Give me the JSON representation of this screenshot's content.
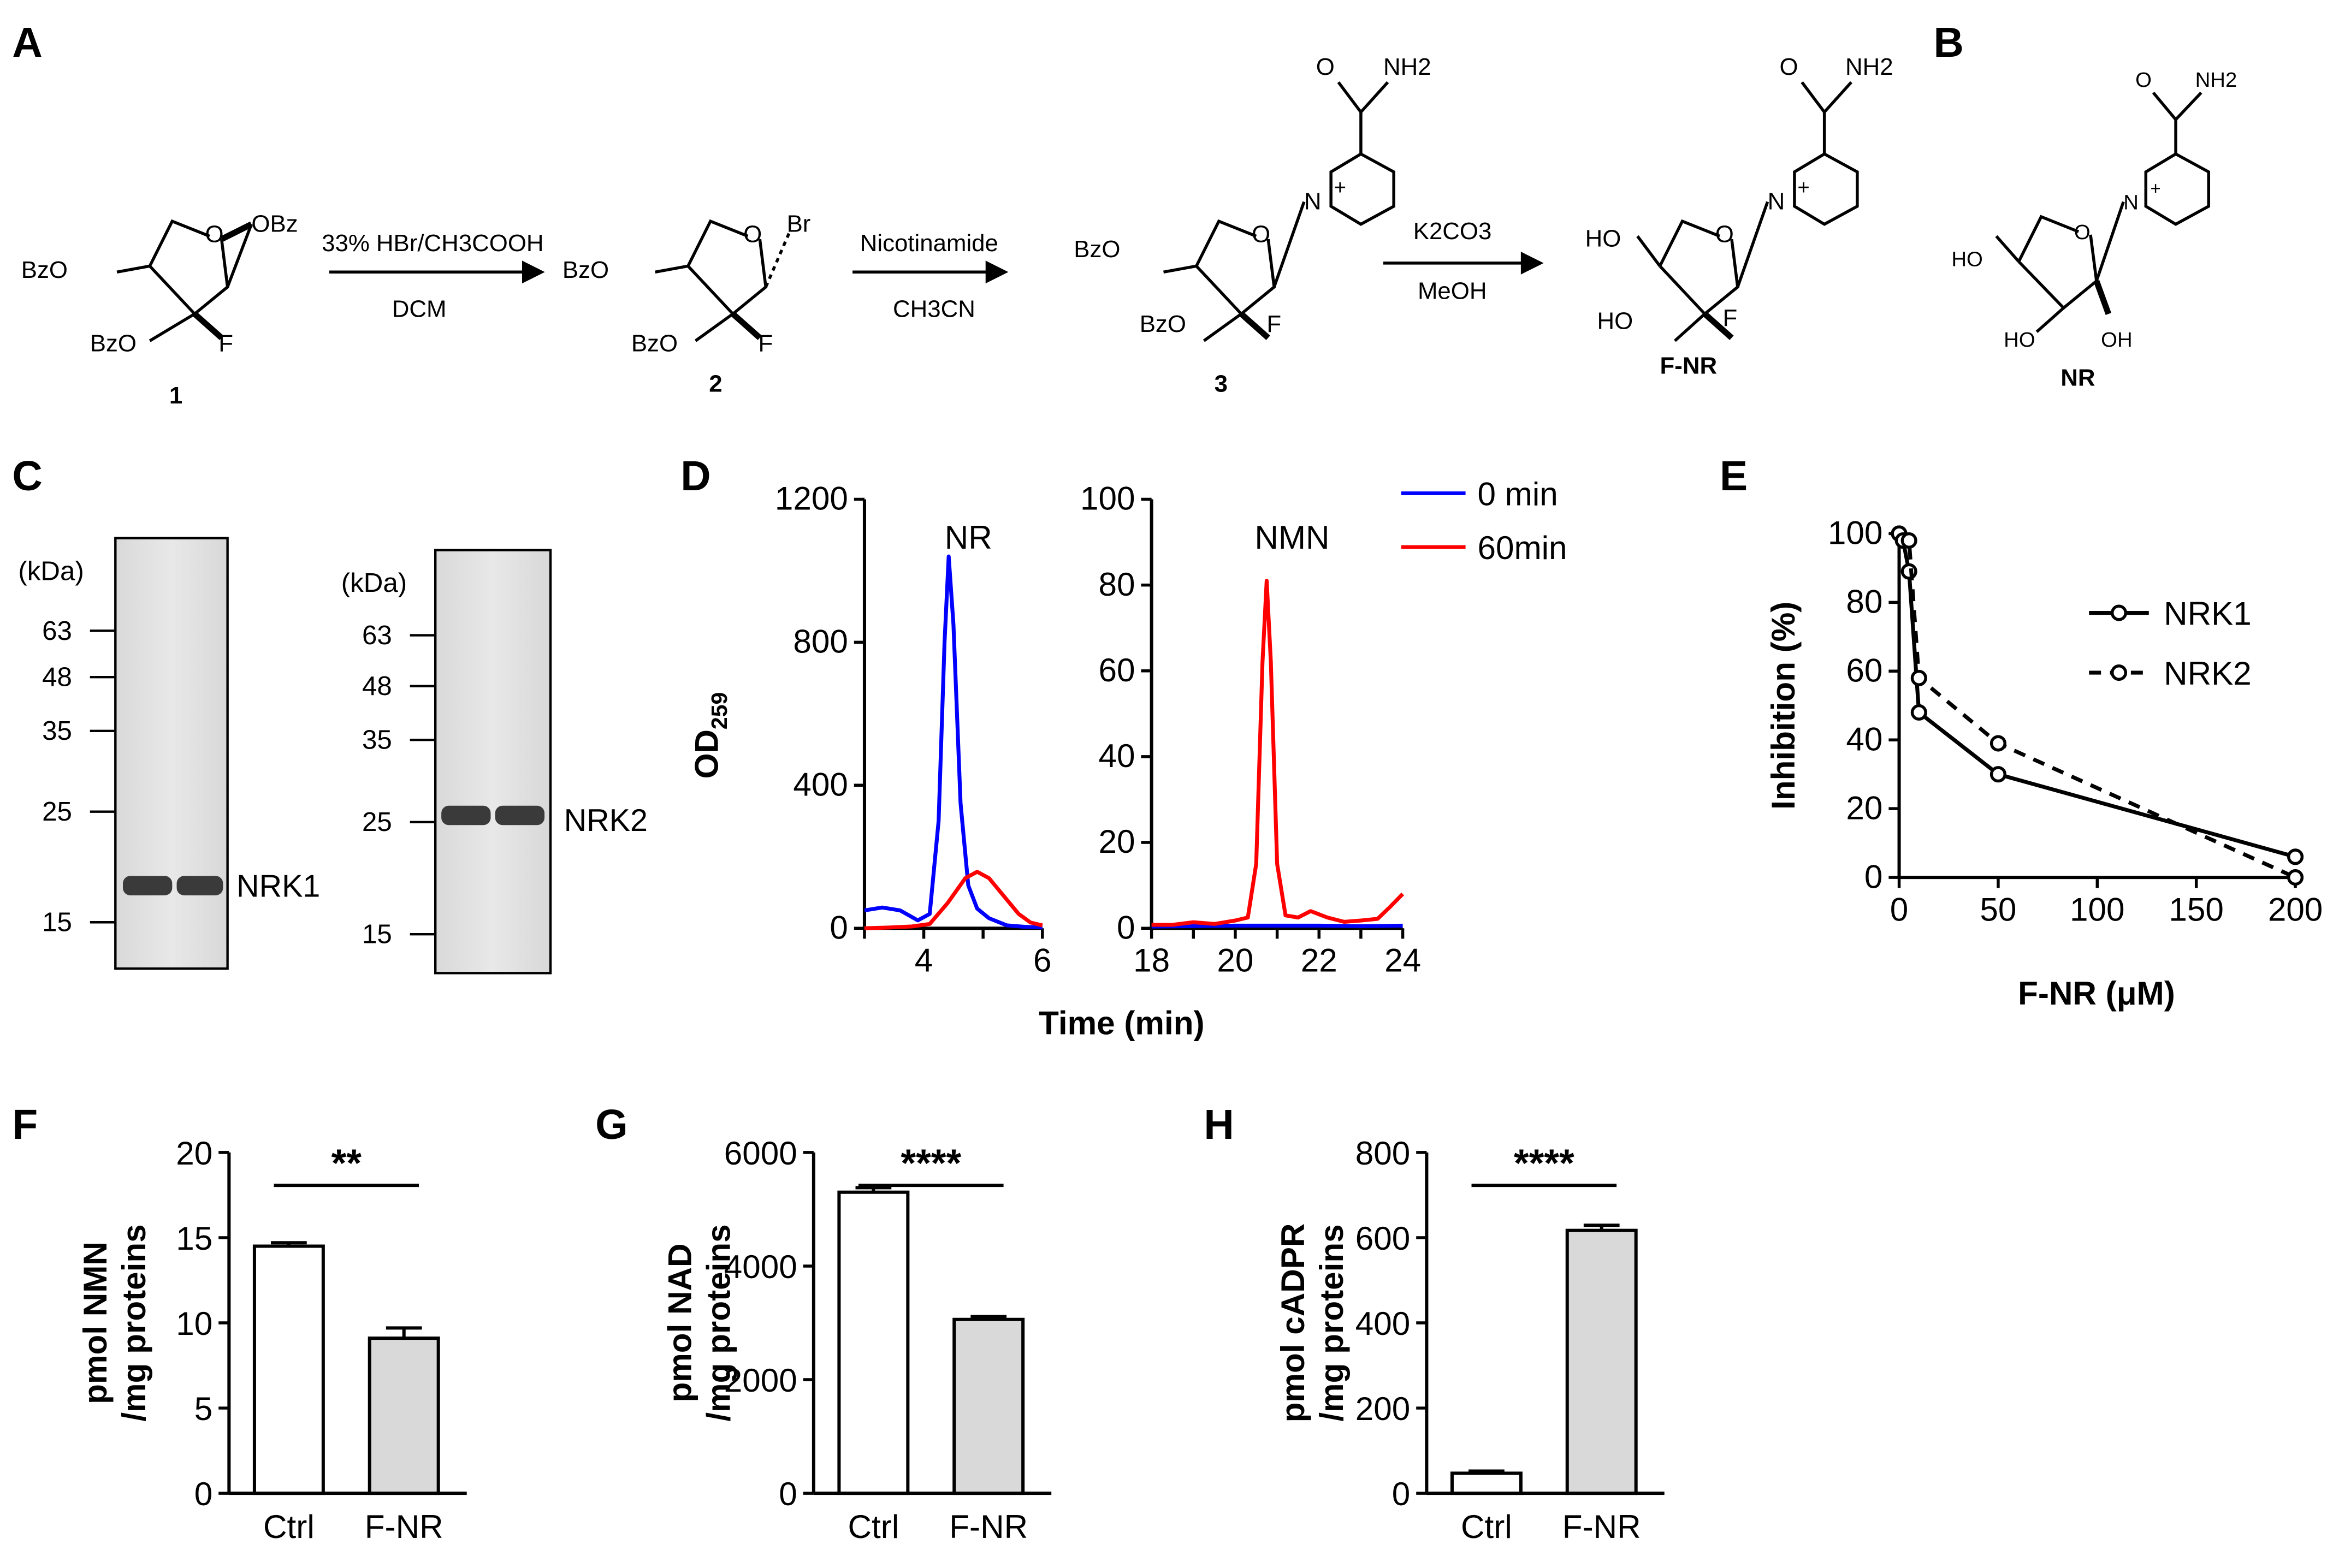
{
  "panels": {
    "a": "A",
    "b": "B",
    "c": "C",
    "d": "D",
    "e": "E",
    "f": "F",
    "g": "G",
    "h": "H"
  },
  "scheme": {
    "step1_reagent": "33% HBr/CH3COOH",
    "step1_solvent": "DCM",
    "step2_reagent": "Nicotinamide",
    "step2_solvent": "CH3CN",
    "step3_reagent": "K2CO3",
    "step3_solvent": "MeOH",
    "compounds": [
      "1",
      "2",
      "3",
      "F-NR"
    ],
    "product_b": "NR",
    "groups": {
      "obz": "OBz",
      "bzo": "BzO",
      "br": "Br",
      "f": "F",
      "ho": "HO",
      "oh": "OH",
      "nh2": "NH2",
      "o": "O",
      "n": "N",
      "plus": "+"
    }
  },
  "gels": {
    "kda_label": "(kDa)",
    "gel1": {
      "markers": [
        "63",
        "48",
        "35",
        "25",
        "15"
      ],
      "band_label": "NRK1"
    },
    "gel2": {
      "markers": [
        "63",
        "48",
        "35",
        "25",
        "15"
      ],
      "band_label": "NRK2"
    }
  },
  "chart_data": [
    {
      "panel": "D",
      "type": "line",
      "title": "NR",
      "xlabel": "Time (min)",
      "ylabel": "OD259",
      "xlim": [
        3,
        6
      ],
      "ylim": [
        0,
        1200
      ],
      "xticks": [
        "4",
        "6"
      ],
      "yticks": [
        "0",
        "400",
        "800",
        "1200"
      ],
      "series": [
        {
          "name": "0 min",
          "color": "#0000ff",
          "points": [
            [
              3.0,
              50
            ],
            [
              3.3,
              58
            ],
            [
              3.6,
              50
            ],
            [
              3.9,
              22
            ],
            [
              4.1,
              40
            ],
            [
              4.25,
              300
            ],
            [
              4.35,
              800
            ],
            [
              4.42,
              1040
            ],
            [
              4.5,
              850
            ],
            [
              4.62,
              350
            ],
            [
              4.75,
              120
            ],
            [
              4.9,
              55
            ],
            [
              5.1,
              28
            ],
            [
              5.4,
              8
            ],
            [
              5.7,
              4
            ],
            [
              6.0,
              2
            ]
          ]
        },
        {
          "name": "60min",
          "color": "#ff0000",
          "points": [
            [
              3.0,
              0
            ],
            [
              3.4,
              2
            ],
            [
              3.8,
              5
            ],
            [
              4.1,
              12
            ],
            [
              4.4,
              70
            ],
            [
              4.7,
              140
            ],
            [
              4.9,
              158
            ],
            [
              5.1,
              140
            ],
            [
              5.35,
              90
            ],
            [
              5.6,
              40
            ],
            [
              5.8,
              16
            ],
            [
              6.0,
              8
            ]
          ]
        }
      ]
    },
    {
      "panel": "D",
      "type": "line",
      "title": "NMN",
      "xlabel": "Time (min)",
      "xlim": [
        18,
        24
      ],
      "ylim": [
        0,
        100
      ],
      "xticks": [
        "18",
        "20",
        "22",
        "24"
      ],
      "yticks": [
        "0",
        "20",
        "40",
        "60",
        "80",
        "100"
      ],
      "legend": [
        "0 min",
        "60min"
      ],
      "series": [
        {
          "name": "0 min",
          "color": "#0000ff",
          "points": [
            [
              18,
              0.4
            ],
            [
              19,
              0.5
            ],
            [
              20,
              0.6
            ],
            [
              21,
              0.6
            ],
            [
              22,
              0.6
            ],
            [
              23,
              0.5
            ],
            [
              24,
              0.6
            ]
          ]
        },
        {
          "name": "60min",
          "color": "#ff0000",
          "points": [
            [
              18,
              0.8
            ],
            [
              18.5,
              0.8
            ],
            [
              19,
              1.4
            ],
            [
              19.5,
              1.0
            ],
            [
              20,
              1.8
            ],
            [
              20.3,
              2.5
            ],
            [
              20.5,
              15
            ],
            [
              20.65,
              62
            ],
            [
              20.75,
              81
            ],
            [
              20.85,
              62
            ],
            [
              21.0,
              15
            ],
            [
              21.2,
              3
            ],
            [
              21.5,
              2.5
            ],
            [
              21.8,
              4
            ],
            [
              22.2,
              2.5
            ],
            [
              22.6,
              1.5
            ],
            [
              23.0,
              1.8
            ],
            [
              23.4,
              2.2
            ],
            [
              23.7,
              5
            ],
            [
              24.0,
              8
            ]
          ]
        }
      ]
    },
    {
      "panel": "E",
      "type": "line",
      "xlabel": "F-NR (μM)",
      "ylabel": "Inhibition (%)",
      "xlim": [
        0,
        200
      ],
      "ylim": [
        0,
        100
      ],
      "xticks": [
        "0",
        "50",
        "100",
        "150",
        "200"
      ],
      "yticks": [
        "0",
        "20",
        "40",
        "60",
        "80",
        "100"
      ],
      "legend": [
        "NRK1",
        "NRK2"
      ],
      "series": [
        {
          "name": "NRK1",
          "style": "solid",
          "x": [
            0,
            2,
            5,
            10,
            50,
            200
          ],
          "y": [
            100,
            98,
            89,
            48,
            30,
            6
          ]
        },
        {
          "name": "NRK2",
          "style": "dashed",
          "x": [
            0,
            2,
            5,
            10,
            50,
            200
          ],
          "y": [
            100,
            98,
            98,
            58,
            39,
            0
          ]
        }
      ]
    },
    {
      "panel": "F",
      "type": "bar",
      "ylabel": "pmol NMN\n/mg proteins",
      "categories": [
        "Ctrl",
        "F-NR"
      ],
      "values": [
        14.5,
        9.1
      ],
      "errors": [
        0.2,
        0.6
      ],
      "ylim": [
        0,
        20
      ],
      "yticks": [
        "0",
        "5",
        "10",
        "15",
        "20"
      ],
      "significance": "**",
      "colors": [
        "#ffffff",
        "#d9d9d9"
      ]
    },
    {
      "panel": "G",
      "type": "bar",
      "ylabel": "pmol NAD\n/mg proteins",
      "categories": [
        "Ctrl",
        "F-NR"
      ],
      "values": [
        5300,
        3060
      ],
      "errors": [
        80,
        50
      ],
      "ylim": [
        0,
        6000
      ],
      "yticks": [
        "0",
        "2000",
        "4000",
        "6000"
      ],
      "significance": "****",
      "colors": [
        "#ffffff",
        "#d9d9d9"
      ]
    },
    {
      "panel": "H",
      "type": "bar",
      "ylabel": "pmol cADPR\n/mg proteins",
      "categories": [
        "Ctrl",
        "F-NR"
      ],
      "values": [
        47,
        617
      ],
      "errors": [
        5,
        12
      ],
      "ylim": [
        0,
        800
      ],
      "yticks": [
        "0",
        "200",
        "400",
        "600",
        "800"
      ],
      "significance": "****",
      "colors": [
        "#ffffff",
        "#d9d9d9"
      ]
    }
  ]
}
